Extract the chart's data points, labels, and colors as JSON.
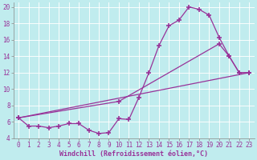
{
  "xlabel": "Windchill (Refroidissement éolien,°C)",
  "background_color": "#c0ecee",
  "line_color": "#993399",
  "grid_color": "#aadddd",
  "xlim": [
    -0.5,
    23.5
  ],
  "ylim": [
    4,
    20.5
  ],
  "yticks": [
    4,
    6,
    8,
    10,
    12,
    14,
    16,
    18,
    20
  ],
  "xticks": [
    0,
    1,
    2,
    3,
    4,
    5,
    6,
    7,
    8,
    9,
    10,
    11,
    12,
    13,
    14,
    15,
    16,
    17,
    18,
    19,
    20,
    21,
    22,
    23
  ],
  "line1_x": [
    0,
    1,
    2,
    3,
    4,
    5,
    6,
    7,
    8,
    9,
    10,
    11,
    12,
    13,
    14,
    15,
    16,
    17,
    18,
    19,
    20,
    21,
    22,
    23
  ],
  "line1_y": [
    6.5,
    5.5,
    5.5,
    5.3,
    5.5,
    5.8,
    5.8,
    5.0,
    4.6,
    4.7,
    6.4,
    6.3,
    9.0,
    12.0,
    15.3,
    17.7,
    18.4,
    20.0,
    19.7,
    19.0,
    16.3,
    14.0,
    12.0,
    12.0
  ],
  "line2_x": [
    0,
    23
  ],
  "line2_y": [
    6.5,
    12.0
  ],
  "line3_x": [
    0,
    10,
    20,
    21,
    22,
    23
  ],
  "line3_y": [
    6.5,
    8.5,
    15.5,
    14.0,
    12.0,
    12.0
  ],
  "xlabel_fontsize": 6,
  "tick_fontsize": 5.5
}
